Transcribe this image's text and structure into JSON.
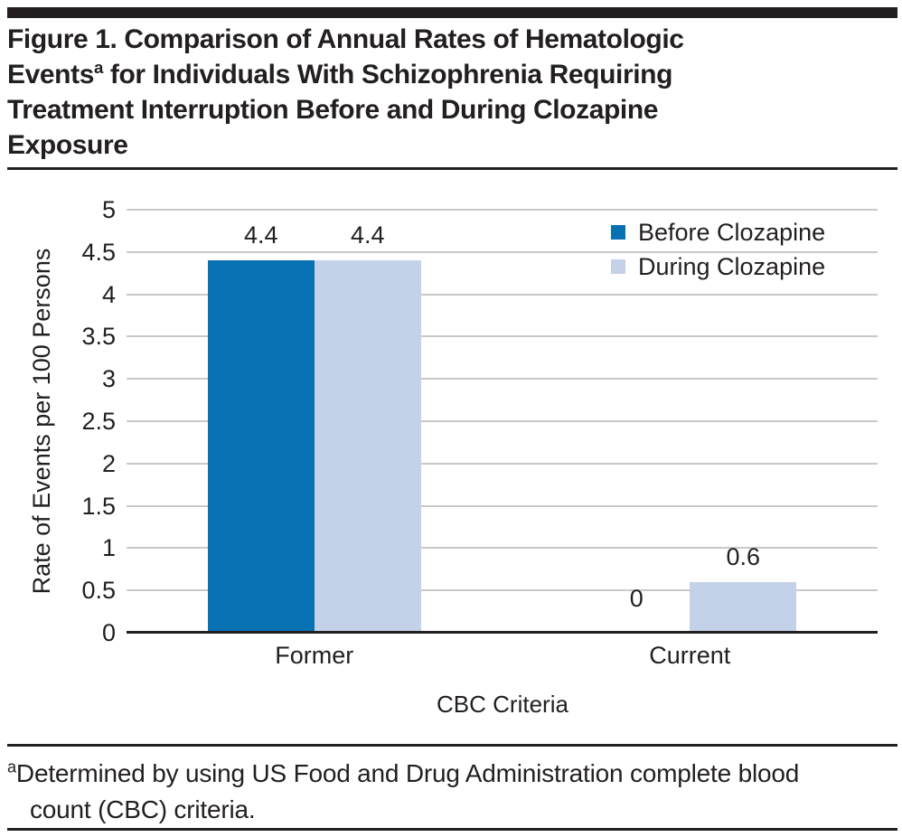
{
  "title": {
    "lines": [
      {
        "text": "Figure 1. Comparison of Annual Rates of Hematologic"
      },
      {
        "pre": "Events",
        "sup": "a",
        "post": " for Individuals With Schizophrenia Requiring"
      },
      {
        "text": "Treatment Interruption Before and During Clozapine"
      },
      {
        "text": "Exposure"
      }
    ]
  },
  "chart_data": {
    "type": "bar",
    "categories": [
      "Former",
      "Current"
    ],
    "series": [
      {
        "name": "Before Clozapine",
        "color": "#0771B4",
        "values": [
          4.4,
          0
        ]
      },
      {
        "name": "During Clozapine",
        "color": "#C3D2E9",
        "values": [
          4.4,
          0.6
        ]
      }
    ],
    "value_labels": [
      [
        "4.4",
        "0"
      ],
      [
        "4.4",
        "0.6"
      ]
    ],
    "ylabel": "Rate of Events per 100 Persons",
    "xlabel": "CBC Criteria",
    "ylim": [
      0,
      5
    ],
    "ytick_step": 0.5,
    "grid": true,
    "gridline_color": "#C9C9C9",
    "axis_color": "#231F20",
    "legend_position": "top-right"
  },
  "footnote": {
    "marker": "a",
    "line1": "Determined by using US Food and Drug Administration complete blood",
    "line2": "count (CBC) criteria."
  }
}
